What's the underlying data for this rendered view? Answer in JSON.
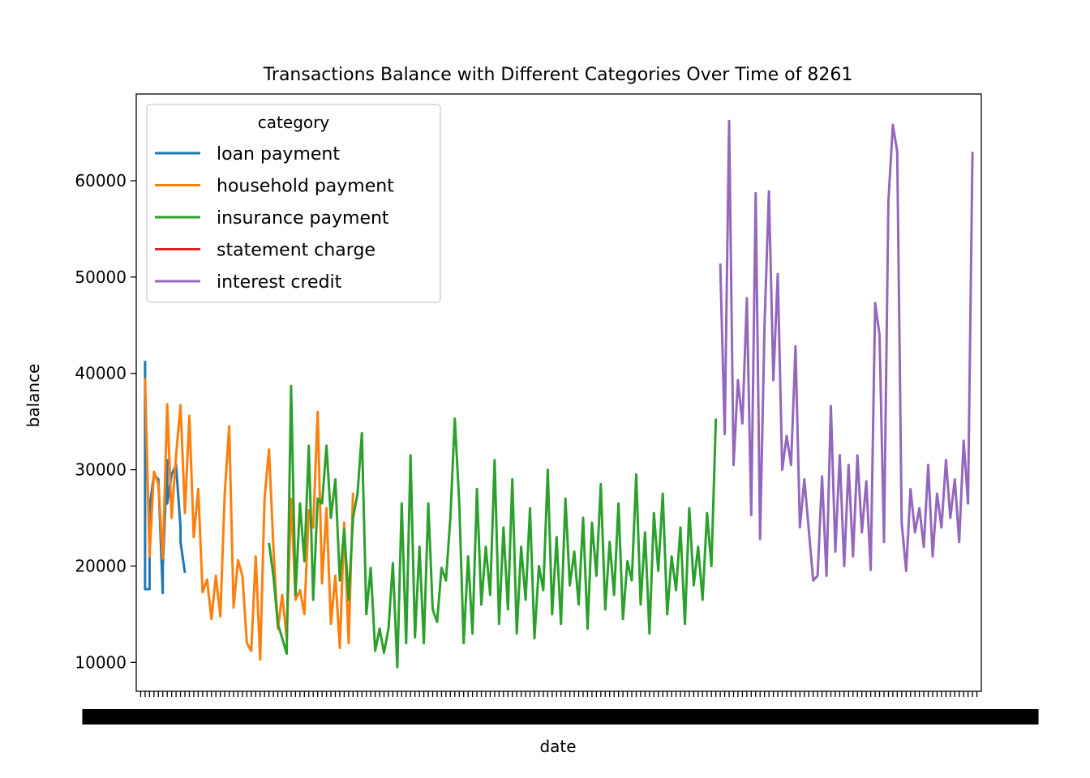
{
  "chart_data": {
    "type": "line",
    "title": "Transactions Balance with Different Categories Over Time of 8261",
    "xlabel": "date",
    "ylabel": "balance",
    "ylim": [
      7000,
      69000
    ],
    "yticks": [
      10000,
      20000,
      30000,
      40000,
      50000,
      60000
    ],
    "ytick_labels": [
      "10000",
      "20000",
      "30000",
      "40000",
      "50000",
      "60000"
    ],
    "x_axis_note": "categorical date axis; tick labels overlap into an unreadable band",
    "xlim": [
      -1,
      190
    ],
    "x_tick_count": 190,
    "grid": false,
    "legend": {
      "title": "category",
      "placement": "upper-left"
    },
    "series": [
      {
        "name": "loan payment",
        "color": "#1f77b4",
        "x": [
          1,
          1,
          2,
          2,
          3,
          4,
          5,
          5,
          6,
          6,
          7,
          8,
          9,
          9,
          10
        ],
        "y": [
          41300,
          17600,
          17600,
          26000,
          29500,
          29000,
          17200,
          19800,
          31000,
          26500,
          29500,
          30500,
          24000,
          22500,
          19300
        ]
      },
      {
        "name": "household payment",
        "color": "#ff7f0e",
        "x": [
          1,
          2,
          3,
          4,
          5,
          6,
          7,
          8,
          9,
          10,
          11,
          12,
          13,
          14,
          15,
          16,
          17,
          18,
          19,
          20,
          21,
          22,
          23,
          24,
          25,
          26,
          27,
          28,
          29,
          30,
          31,
          32,
          33,
          34,
          35,
          36,
          37,
          38,
          39,
          40,
          41,
          42,
          43,
          44,
          45,
          46,
          47,
          48
        ],
        "y": [
          39500,
          21000,
          29800,
          28500,
          20800,
          36800,
          25000,
          31500,
          36700,
          25500,
          35600,
          23000,
          28000,
          17300,
          18600,
          14500,
          19000,
          14800,
          27500,
          34500,
          15700,
          20600,
          19000,
          12000,
          11200,
          21000,
          10300,
          27000,
          32100,
          22000,
          13500,
          17000,
          12500,
          27000,
          16500,
          17500,
          15000,
          25800,
          24000,
          36000,
          18200,
          26000,
          14000,
          19000,
          11500,
          24500,
          12000,
          27600
        ]
      },
      {
        "name": "insurance payment",
        "color": "#2ca02c",
        "x": [
          29,
          30,
          31,
          32,
          33,
          34,
          35,
          36,
          37,
          38,
          39,
          40,
          41,
          42,
          43,
          44,
          45,
          46,
          47,
          48,
          49,
          50,
          51,
          52,
          53,
          54,
          55,
          56,
          57,
          58,
          59,
          60,
          61,
          62,
          63,
          64,
          65,
          66,
          67,
          68,
          69,
          70,
          71,
          72,
          73,
          74,
          75,
          76,
          77,
          78,
          79,
          80,
          81,
          82,
          83,
          84,
          85,
          86,
          87,
          88,
          89,
          90,
          91,
          92,
          93,
          94,
          95,
          96,
          97,
          98,
          99,
          100,
          101,
          102,
          103,
          104,
          105,
          106,
          107,
          108,
          109,
          110,
          111,
          112,
          113,
          114,
          115,
          116,
          117,
          118,
          119,
          120,
          121,
          122,
          123,
          124,
          125,
          126,
          127,
          128,
          129,
          130
        ],
        "y": [
          22400,
          19000,
          14000,
          12500,
          10900,
          38700,
          17000,
          26500,
          20500,
          32500,
          16500,
          27000,
          26500,
          32500,
          25000,
          29000,
          18500,
          23800,
          16500,
          25000,
          27500,
          33800,
          15000,
          19800,
          11200,
          13500,
          11000,
          13500,
          20300,
          9500,
          26500,
          12000,
          31500,
          12600,
          22000,
          12000,
          26500,
          15500,
          14200,
          19800,
          18500,
          25000,
          35300,
          26500,
          12000,
          21000,
          13000,
          28000,
          16000,
          22000,
          17000,
          31000,
          14000,
          24000,
          15500,
          29000,
          13000,
          22000,
          16500,
          26000,
          12500,
          20000,
          17500,
          30000,
          15000,
          23000,
          14000,
          27000,
          18000,
          21500,
          16000,
          25000,
          13500,
          24500,
          19000,
          28500,
          15500,
          22500,
          17000,
          26500,
          14500,
          20500,
          18500,
          29500,
          16000,
          23500,
          13000,
          25500,
          19500,
          27500,
          15000,
          21000,
          17500,
          24000,
          14000,
          26000,
          18000,
          22000,
          16500,
          25500,
          20000,
          35300
        ]
      },
      {
        "name": "statement charge",
        "color": "#d62728",
        "x": [],
        "y": []
      },
      {
        "name": "interest credit",
        "color": "#9467bd",
        "x": [
          131,
          132,
          133,
          134,
          135,
          136,
          137,
          138,
          139,
          140,
          141,
          142,
          143,
          144,
          145,
          146,
          147,
          148,
          149,
          150,
          151,
          152,
          153,
          154,
          155,
          156,
          157,
          158,
          159,
          160,
          161,
          162,
          163,
          164,
          165,
          166,
          167,
          168,
          169,
          170,
          171,
          172,
          173,
          174,
          175,
          176,
          177,
          178,
          179,
          180,
          181,
          182,
          183,
          184,
          185,
          186,
          187,
          188
        ],
        "y": [
          51400,
          33700,
          66200,
          30500,
          39300,
          34800,
          47800,
          25300,
          58700,
          22800,
          45000,
          58900,
          39300,
          50300,
          30000,
          33500,
          30500,
          42800,
          24000,
          29000,
          23800,
          18500,
          19000,
          29300,
          19000,
          36600,
          21500,
          31500,
          20000,
          30500,
          21000,
          31500,
          23500,
          28800,
          19600,
          47300,
          44000,
          22500,
          57800,
          65800,
          63000,
          24500,
          19500,
          28000,
          23500,
          26000,
          22000,
          30500,
          21000,
          27500,
          24000,
          31000,
          25000,
          29000,
          22500,
          33000,
          26500,
          63000
        ]
      }
    ]
  }
}
